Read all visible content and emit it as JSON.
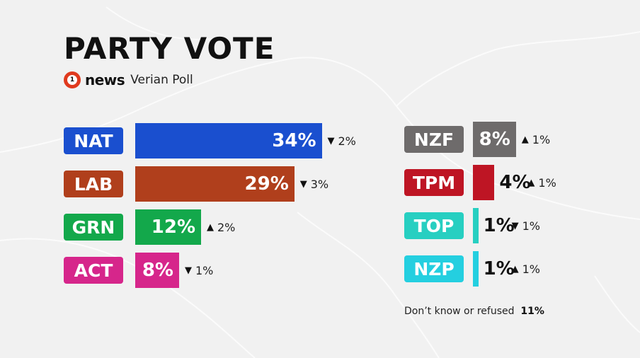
{
  "title": "PARTY VOTE",
  "brand": {
    "logo_number": "1",
    "logo_text": "news",
    "poll": "Verian Poll"
  },
  "colors": {
    "NAT": "#1a4fcf",
    "LAB": "#b03f1c",
    "GRN": "#13a84b",
    "ACT": "#d6268b",
    "NZF": "#6e6b6b",
    "TPM": "#be1524",
    "TOP": "#27cfc1",
    "NZP": "#24cfe0"
  },
  "chart_data": {
    "type": "bar",
    "title": "PARTY VOTE",
    "orientation": "horizontal",
    "unit": "%",
    "groups": [
      {
        "bars": [
          {
            "party": "NAT",
            "value": 34,
            "label": "34%",
            "change_dir": "down",
            "change": "2%"
          },
          {
            "party": "LAB",
            "value": 29,
            "label": "29%",
            "change_dir": "down",
            "change": "3%"
          },
          {
            "party": "GRN",
            "value": 12,
            "label": "12%",
            "change_dir": "up",
            "change": "2%"
          },
          {
            "party": "ACT",
            "value": 8,
            "label": "8%",
            "change_dir": "down",
            "change": "1%"
          }
        ]
      },
      {
        "bars": [
          {
            "party": "NZF",
            "value": 8,
            "label": "8%",
            "change_dir": "up",
            "change": "1%"
          },
          {
            "party": "TPM",
            "value": 4,
            "label": "4%",
            "change_dir": "up",
            "change": "1%"
          },
          {
            "party": "TOP",
            "value": 1,
            "label": "1%",
            "change_dir": "down",
            "change": "1%"
          },
          {
            "party": "NZP",
            "value": 1,
            "label": "1%",
            "change_dir": "up",
            "change": "1%"
          }
        ]
      }
    ]
  },
  "note": {
    "text": "Don’t know or refused",
    "value": "11%"
  }
}
